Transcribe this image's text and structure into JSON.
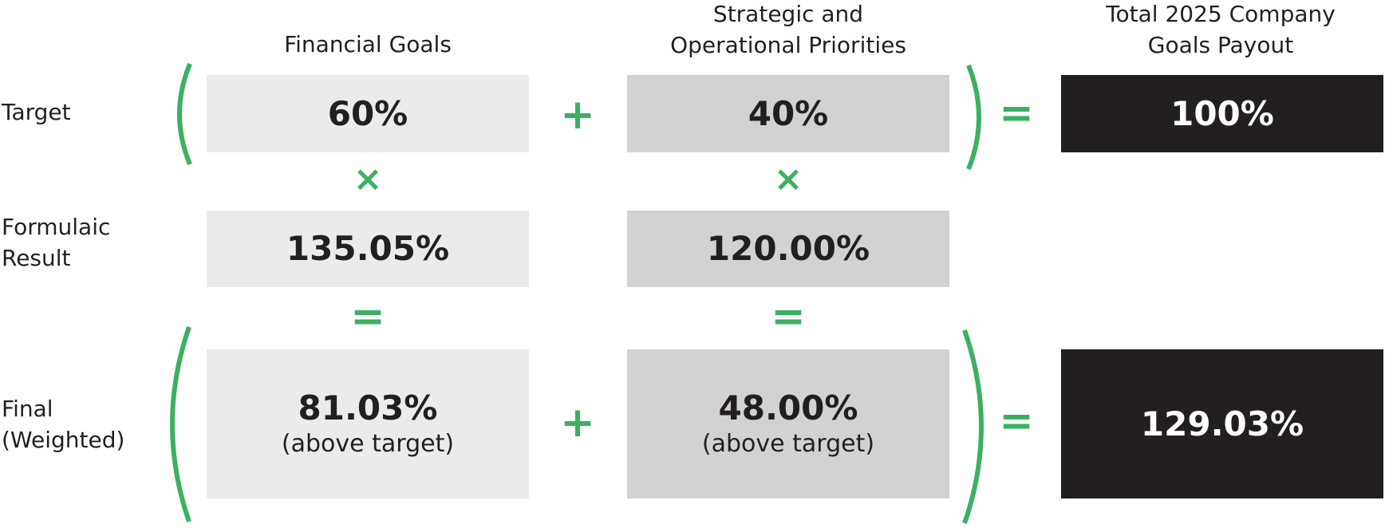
{
  "headers": {
    "financial": "Financial Goals",
    "strategic": "Strategic and\nOperational Priorities",
    "total": "Total 2025 Company\nGoals Payout"
  },
  "row_labels": {
    "target": "Target",
    "formulaic": "Formulaic\nResult",
    "final": "Final\n(Weighted)"
  },
  "target": {
    "financial": "60%",
    "strategic": "40%",
    "total": "100%"
  },
  "formulaic": {
    "financial": "135.05%",
    "strategic": "120.00%"
  },
  "final": {
    "financial": "81.03%",
    "financial_note": "(above target)",
    "strategic": "48.00%",
    "strategic_note": "(above target)",
    "total": "129.03%"
  },
  "operators": {
    "plus": "+",
    "times": "×",
    "equals": "="
  },
  "colors": {
    "accent": "#3cb062",
    "box_light": "#ebebeb",
    "box_mid": "#d1d2d4",
    "box_dark": "#231f20",
    "text": "#231f20"
  }
}
